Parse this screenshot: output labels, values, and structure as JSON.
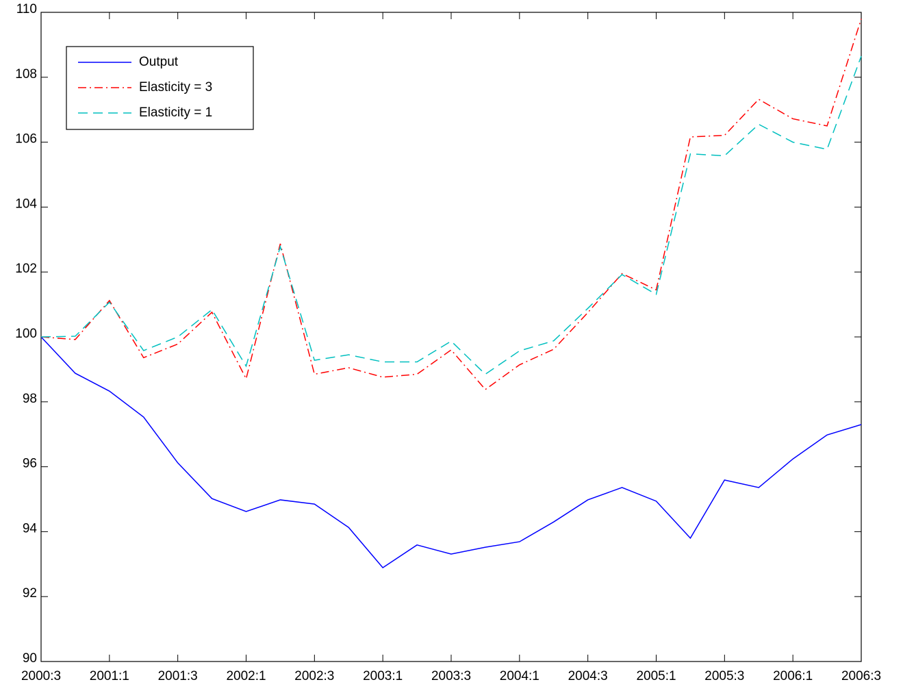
{
  "chart_data": {
    "type": "line",
    "categories": [
      "2000:3",
      null,
      "2001:1",
      null,
      "2001:3",
      null,
      "2002:1",
      null,
      "2002:3",
      null,
      "2003:1",
      null,
      "2003:3",
      null,
      "2004:1",
      null,
      "2004:3",
      null,
      "2005:1",
      null,
      "2005:3",
      null,
      "2006:1",
      null,
      "2006:3"
    ],
    "series": [
      {
        "name": "Output",
        "color": "#0000ff",
        "linestyle": "solid",
        "values": [
          100,
          98.88,
          98.33,
          97.53,
          96.12,
          95.02,
          94.62,
          94.98,
          94.85,
          94.13,
          92.89,
          93.59,
          93.31,
          93.52,
          93.69,
          94.3,
          94.98,
          95.36,
          94.94,
          93.8,
          95.59,
          95.36,
          96.24,
          96.98,
          97.3
        ]
      },
      {
        "name": "Elasticity = 3",
        "color": "#ff0000",
        "linestyle": "dashdot",
        "values": [
          100,
          99.92,
          101.12,
          99.36,
          99.78,
          100.76,
          98.71,
          102.87,
          98.85,
          99.05,
          98.76,
          98.85,
          99.6,
          98.38,
          99.14,
          99.62,
          100.75,
          101.95,
          101.45,
          106.16,
          106.21,
          107.32,
          106.72,
          106.5,
          109.8
        ]
      },
      {
        "name": "Elasticity = 1",
        "color": "#00bfbf",
        "linestyle": "dashed",
        "values": [
          100,
          100.02,
          101.07,
          99.58,
          100,
          100.84,
          99.1,
          102.78,
          99.28,
          99.45,
          99.23,
          99.23,
          99.87,
          98.85,
          99.57,
          99.88,
          100.88,
          101.92,
          101.31,
          105.64,
          105.58,
          106.55,
          106,
          105.78,
          108.65
        ]
      }
    ],
    "ylim": [
      90,
      110
    ],
    "yticks": [
      90,
      92,
      94,
      96,
      98,
      100,
      102,
      104,
      106,
      108,
      110
    ],
    "grid": false,
    "legend": "upper left"
  }
}
